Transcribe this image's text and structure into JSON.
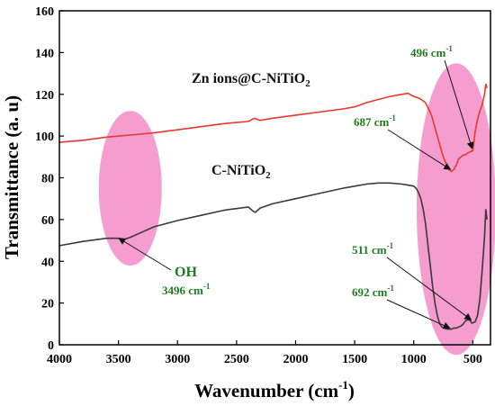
{
  "chart_data": {
    "type": "line",
    "xlabel": "Wavenumber (cm",
    "xlabel_sup": "-1",
    "xlabel_tail": ")",
    "ylabel": "Transmittance (a. u)",
    "xlim": [
      4000,
      350
    ],
    "ylim": [
      0,
      160
    ],
    "x_ticks": [
      4000,
      3500,
      3000,
      2500,
      2000,
      1500,
      1000,
      500
    ],
    "y_ticks": [
      0,
      20,
      40,
      60,
      80,
      100,
      120,
      140,
      160
    ],
    "grid": false,
    "series": [
      {
        "name": "Zn ions@C-NiTiO",
        "name_sub": "2",
        "color": "#e8382f",
        "x": [
          4000,
          3800,
          3600,
          3400,
          3200,
          3000,
          2800,
          2600,
          2400,
          2350,
          2300,
          2200,
          2000,
          1800,
          1600,
          1500,
          1400,
          1300,
          1200,
          1100,
          1050,
          1000,
          950,
          900,
          850,
          800,
          750,
          720,
          700,
          680,
          660,
          640,
          620,
          600,
          580,
          560,
          540,
          520,
          500,
          490,
          480,
          460,
          440,
          420,
          400,
          390,
          380
        ],
        "values": [
          97,
          98,
          99.5,
          100.5,
          101.5,
          103,
          104.5,
          106,
          107,
          108.5,
          107.5,
          108.5,
          110,
          111.5,
          113,
          114,
          116,
          117.5,
          119,
          120,
          120.5,
          119,
          118,
          116,
          110,
          100,
          90,
          86,
          84,
          83,
          84,
          86,
          89,
          90,
          91,
          91,
          92,
          92.5,
          93,
          97,
          102,
          108,
          112,
          115,
          120,
          125,
          123
        ]
      },
      {
        "name": "C-NiTiO",
        "name_sub": "2",
        "color": "#3a3a3a",
        "x": [
          4000,
          3800,
          3600,
          3500,
          3450,
          3400,
          3300,
          3200,
          3000,
          2800,
          2600,
          2400,
          2360,
          2340,
          2300,
          2200,
          2000,
          1800,
          1600,
          1500,
          1400,
          1300,
          1200,
          1100,
          1050,
          1000,
          980,
          960,
          940,
          920,
          900,
          880,
          860,
          840,
          820,
          800,
          780,
          760,
          740,
          720,
          700,
          690,
          680,
          660,
          640,
          620,
          600,
          580,
          560,
          540,
          520,
          511,
          500,
          480,
          460,
          440,
          420,
          400,
          390,
          380
        ],
        "values": [
          47.5,
          49.5,
          51,
          51,
          50.5,
          51.5,
          54,
          56.5,
          59.5,
          62,
          64.5,
          66,
          64,
          63.5,
          65.5,
          67.5,
          70,
          72.5,
          75,
          76,
          77,
          77.5,
          77.5,
          77,
          76.5,
          76,
          75,
          73,
          70,
          65,
          58,
          48,
          38,
          28,
          20,
          14,
          10,
          8.5,
          8,
          7.5,
          7.5,
          7.5,
          7.5,
          8,
          8,
          8.5,
          9,
          10,
          11.5,
          12,
          11.5,
          10.5,
          10.5,
          11,
          14,
          22,
          36,
          52,
          65,
          60
        ]
      }
    ],
    "annotations": [
      {
        "id": "ann_496",
        "text": "496 cm",
        "sup": "-1",
        "target_x": 505,
        "target_y": 94
      },
      {
        "id": "ann_687",
        "text": "687 cm",
        "sup": "-1",
        "target_x": 690,
        "target_y": 84
      },
      {
        "id": "ann_oh",
        "text": "OH",
        "sub_text": "3496 cm",
        "sup": "-1",
        "target_x": 3496,
        "target_y": 51
      },
      {
        "id": "ann_511",
        "text": "511 cm",
        "sup": "-1",
        "target_x": 515,
        "target_y": 12
      },
      {
        "id": "ann_692",
        "text": "692 cm",
        "sup": "-1",
        "target_x": 695,
        "target_y": 8
      }
    ],
    "highlight_color": "#f48cc8"
  }
}
